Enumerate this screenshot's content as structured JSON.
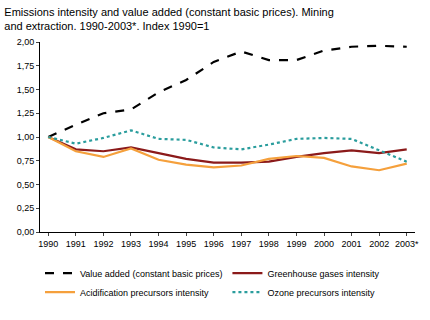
{
  "chart_data": {
    "type": "line",
    "title": "Emissions intensity and value added (constant basic prices). Mining\nand extraction. 1990-2003*. Index 1990=1",
    "categories": [
      "1990",
      "1991",
      "1992",
      "1993",
      "1994",
      "1995",
      "1996",
      "1997",
      "1998",
      "1999",
      "2000",
      "2001",
      "2002",
      "2003*"
    ],
    "series": [
      {
        "name": "Value added (constant basic prices)",
        "color": "#000000",
        "line_style": "dashed",
        "values": [
          1.0,
          1.13,
          1.25,
          1.29,
          1.47,
          1.6,
          1.79,
          1.9,
          1.81,
          1.81,
          1.91,
          1.95,
          1.96,
          1.95
        ]
      },
      {
        "name": "Greenhouse gases intensity",
        "color": "#8b1a1a",
        "line_style": "solid",
        "values": [
          1.0,
          0.87,
          0.85,
          0.89,
          0.83,
          0.77,
          0.73,
          0.73,
          0.74,
          0.79,
          0.83,
          0.86,
          0.83,
          0.87
        ]
      },
      {
        "name": "Acidification precursors intensity",
        "color": "#f5a03c",
        "line_style": "solid",
        "values": [
          1.0,
          0.85,
          0.79,
          0.88,
          0.76,
          0.71,
          0.68,
          0.7,
          0.77,
          0.8,
          0.78,
          0.69,
          0.65,
          0.72
        ]
      },
      {
        "name": "Ozone precursors intensity",
        "color": "#2a9d9d",
        "line_style": "dotted",
        "values": [
          1.0,
          0.93,
          0.99,
          1.07,
          0.98,
          0.97,
          0.89,
          0.87,
          0.92,
          0.98,
          0.99,
          0.98,
          0.86,
          0.74
        ]
      }
    ],
    "ylim": [
      0,
      2
    ],
    "yticks": [
      {
        "value": 0,
        "label": "0,00"
      },
      {
        "value": 0.25,
        "label": "0,25"
      },
      {
        "value": 0.5,
        "label": "0,50"
      },
      {
        "value": 0.75,
        "label": "0,75"
      },
      {
        "value": 1,
        "label": "1,00"
      },
      {
        "value": 1.25,
        "label": "1,25"
      },
      {
        "value": 1.5,
        "label": "1,50"
      },
      {
        "value": 1.75,
        "label": "1,75"
      },
      {
        "value": 2,
        "label": "2,00"
      }
    ],
    "grid": false,
    "legend": "bottom"
  }
}
